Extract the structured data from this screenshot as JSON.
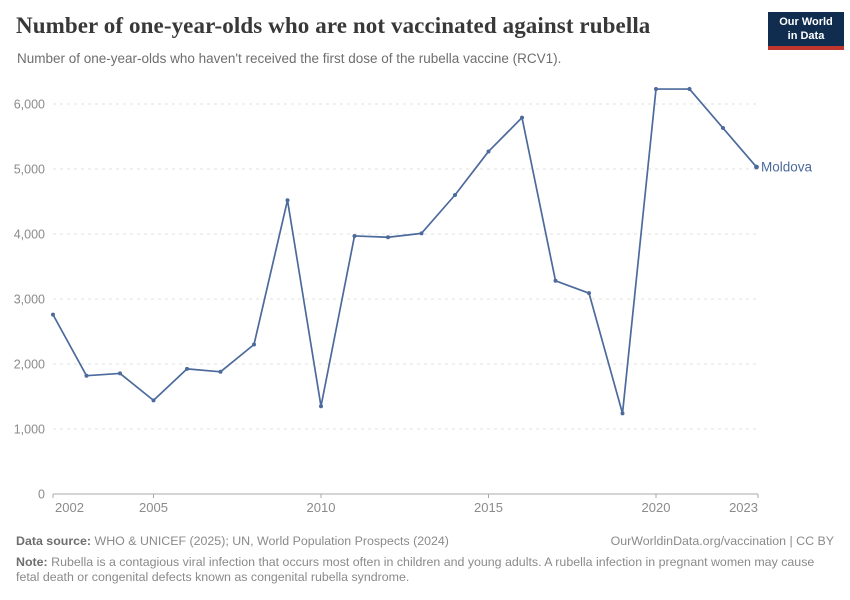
{
  "header": {
    "title": "Number of one-year-olds who are not vaccinated against rubella",
    "subtitle": "Number of one-year-olds who haven't received the first dose of the rubella vaccine (RCV1).",
    "logo": {
      "line1": "Our World",
      "line2": "in Data",
      "bg_color": "#102d50",
      "bar_color": "#c0362c"
    }
  },
  "chart_data": {
    "type": "line",
    "title": "Number of one-year-olds who are not vaccinated against rubella",
    "entity_label": "Moldova",
    "x": [
      2002,
      2003,
      2004,
      2005,
      2006,
      2007,
      2008,
      2009,
      2010,
      2011,
      2012,
      2013,
      2014,
      2015,
      2016,
      2017,
      2018,
      2019,
      2020,
      2021,
      2022,
      2023
    ],
    "series": [
      {
        "name": "Moldova",
        "color": "#4c6a9c",
        "values": [
          2760,
          1820,
          1855,
          1440,
          1925,
          1880,
          2300,
          4520,
          1350,
          3970,
          3950,
          4010,
          4600,
          5270,
          5790,
          3280,
          3090,
          1240,
          6230,
          6230,
          5630,
          5030
        ]
      }
    ],
    "xticks": [
      2002,
      2005,
      2010,
      2015,
      2020,
      2023
    ],
    "yticks": [
      0,
      1000,
      2000,
      3000,
      4000,
      5000,
      6000
    ],
    "ylim": [
      0,
      6500
    ],
    "xlim": [
      2002,
      2023
    ],
    "grid": "horizontal-dashed",
    "legend_position": "end-of-line",
    "axis_color": "#a8a8a8",
    "grid_color": "#e2e2e2",
    "tick_label_color": "#8b8b8b"
  },
  "footer": {
    "source_label": "Data source:",
    "source_text": "WHO & UNICEF (2025); UN, World Population Prospects (2024)",
    "link": "OurWorldinData.org/vaccination | CC BY",
    "note_label": "Note:",
    "note_text": "Rubella is a contagious viral infection that occurs most often in children and young adults. A rubella infection in pregnant women may cause fetal death or congenital defects known as congenital rubella syndrome."
  }
}
